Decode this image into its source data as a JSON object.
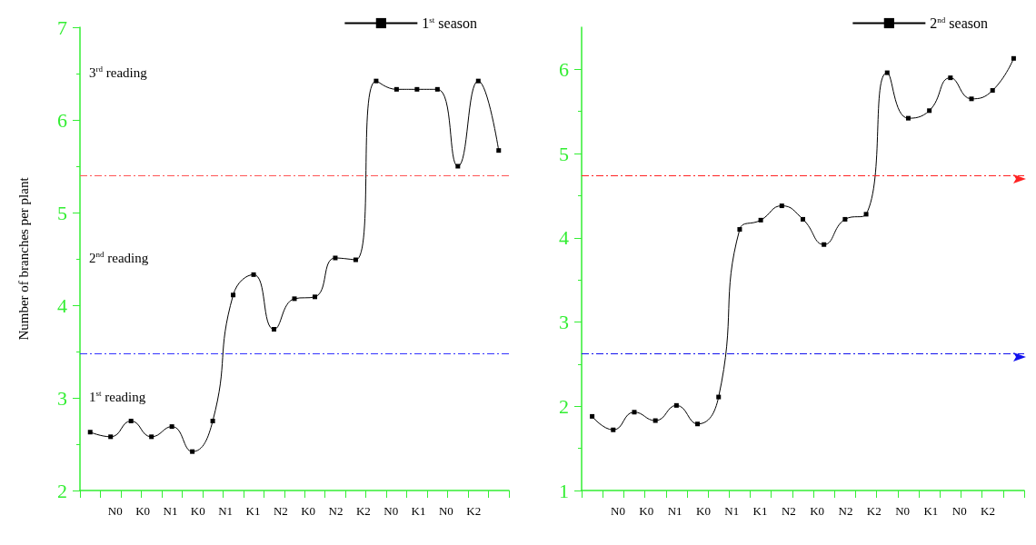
{
  "chart_data": [
    {
      "type": "line",
      "categories": [
        null,
        null,
        null,
        null,
        null,
        null,
        null,
        null,
        null,
        null,
        null,
        null,
        null,
        null,
        null,
        null,
        null,
        null,
        null,
        null,
        null
      ],
      "xlabel": "N0 K0  N1 K0  N1 K1  N2 K0  N2 K2  N0 K1  N0 K2",
      "ylabel": "Number of branches per plant",
      "series": [
        {
          "name": "1$^{st}$ season",
          "color": "#000000",
          "values": [
            2.63,
            2.58,
            2.75,
            2.58,
            2.69,
            2.42,
            2.75,
            4.11,
            4.33,
            3.74,
            4.07,
            4.09,
            4.51,
            4.49,
            6.42,
            6.33,
            6.33,
            6.33,
            5.5,
            6.42,
            5.67
          ]
        }
      ],
      "ylim": [
        2,
        7
      ],
      "yticks": [
        2,
        3,
        4,
        5,
        6,
        7
      ],
      "marker": "square",
      "legend": "top right",
      "grid": false,
      "ref_lines": [
        {
          "axis": "y",
          "value": 5.4,
          "color": "#ff5555",
          "line_style": "dashed"
        },
        {
          "axis": "y",
          "value": 3.48,
          "color": "#3333ff",
          "line_style": "dashed"
        }
      ],
      "annotations": [
        "3$^{rd}$ reading",
        "2$^{nd}$ reading",
        "1$^{st}$ reading"
      ]
    },
    {
      "type": "line",
      "categories": [
        null,
        null,
        null,
        null,
        null,
        null,
        null,
        null,
        null,
        null,
        null,
        null,
        null,
        null,
        null,
        null,
        null,
        null,
        null,
        null,
        null
      ],
      "xlabel": "N0 K0  N1 K0  N1 K1  N2 K0  N2 K2  N0 K1  N0 K2",
      "series": [
        {
          "name": "2$^{nd}$ season",
          "color": "#000000",
          "values": [
            1.88,
            1.72,
            1.93,
            1.83,
            2.01,
            1.79,
            2.11,
            4.1,
            4.21,
            4.38,
            4.22,
            3.92,
            4.22,
            4.28,
            5.96,
            5.42,
            5.51,
            5.9,
            5.65,
            5.75,
            6.13
          ]
        }
      ],
      "ylim": [
        1,
        6.5
      ],
      "yticks": [
        1,
        2,
        3,
        4,
        5,
        6
      ],
      "marker": "square",
      "legend": "top right",
      "grid": false,
      "ref_lines": [
        {
          "axis": "y",
          "value": 4.74,
          "color": "#ff2222",
          "line_style": "dashed"
        },
        {
          "axis": "y",
          "value": 2.63,
          "color": "#1111ee",
          "line_style": "dashed"
        }
      ]
    }
  ]
}
